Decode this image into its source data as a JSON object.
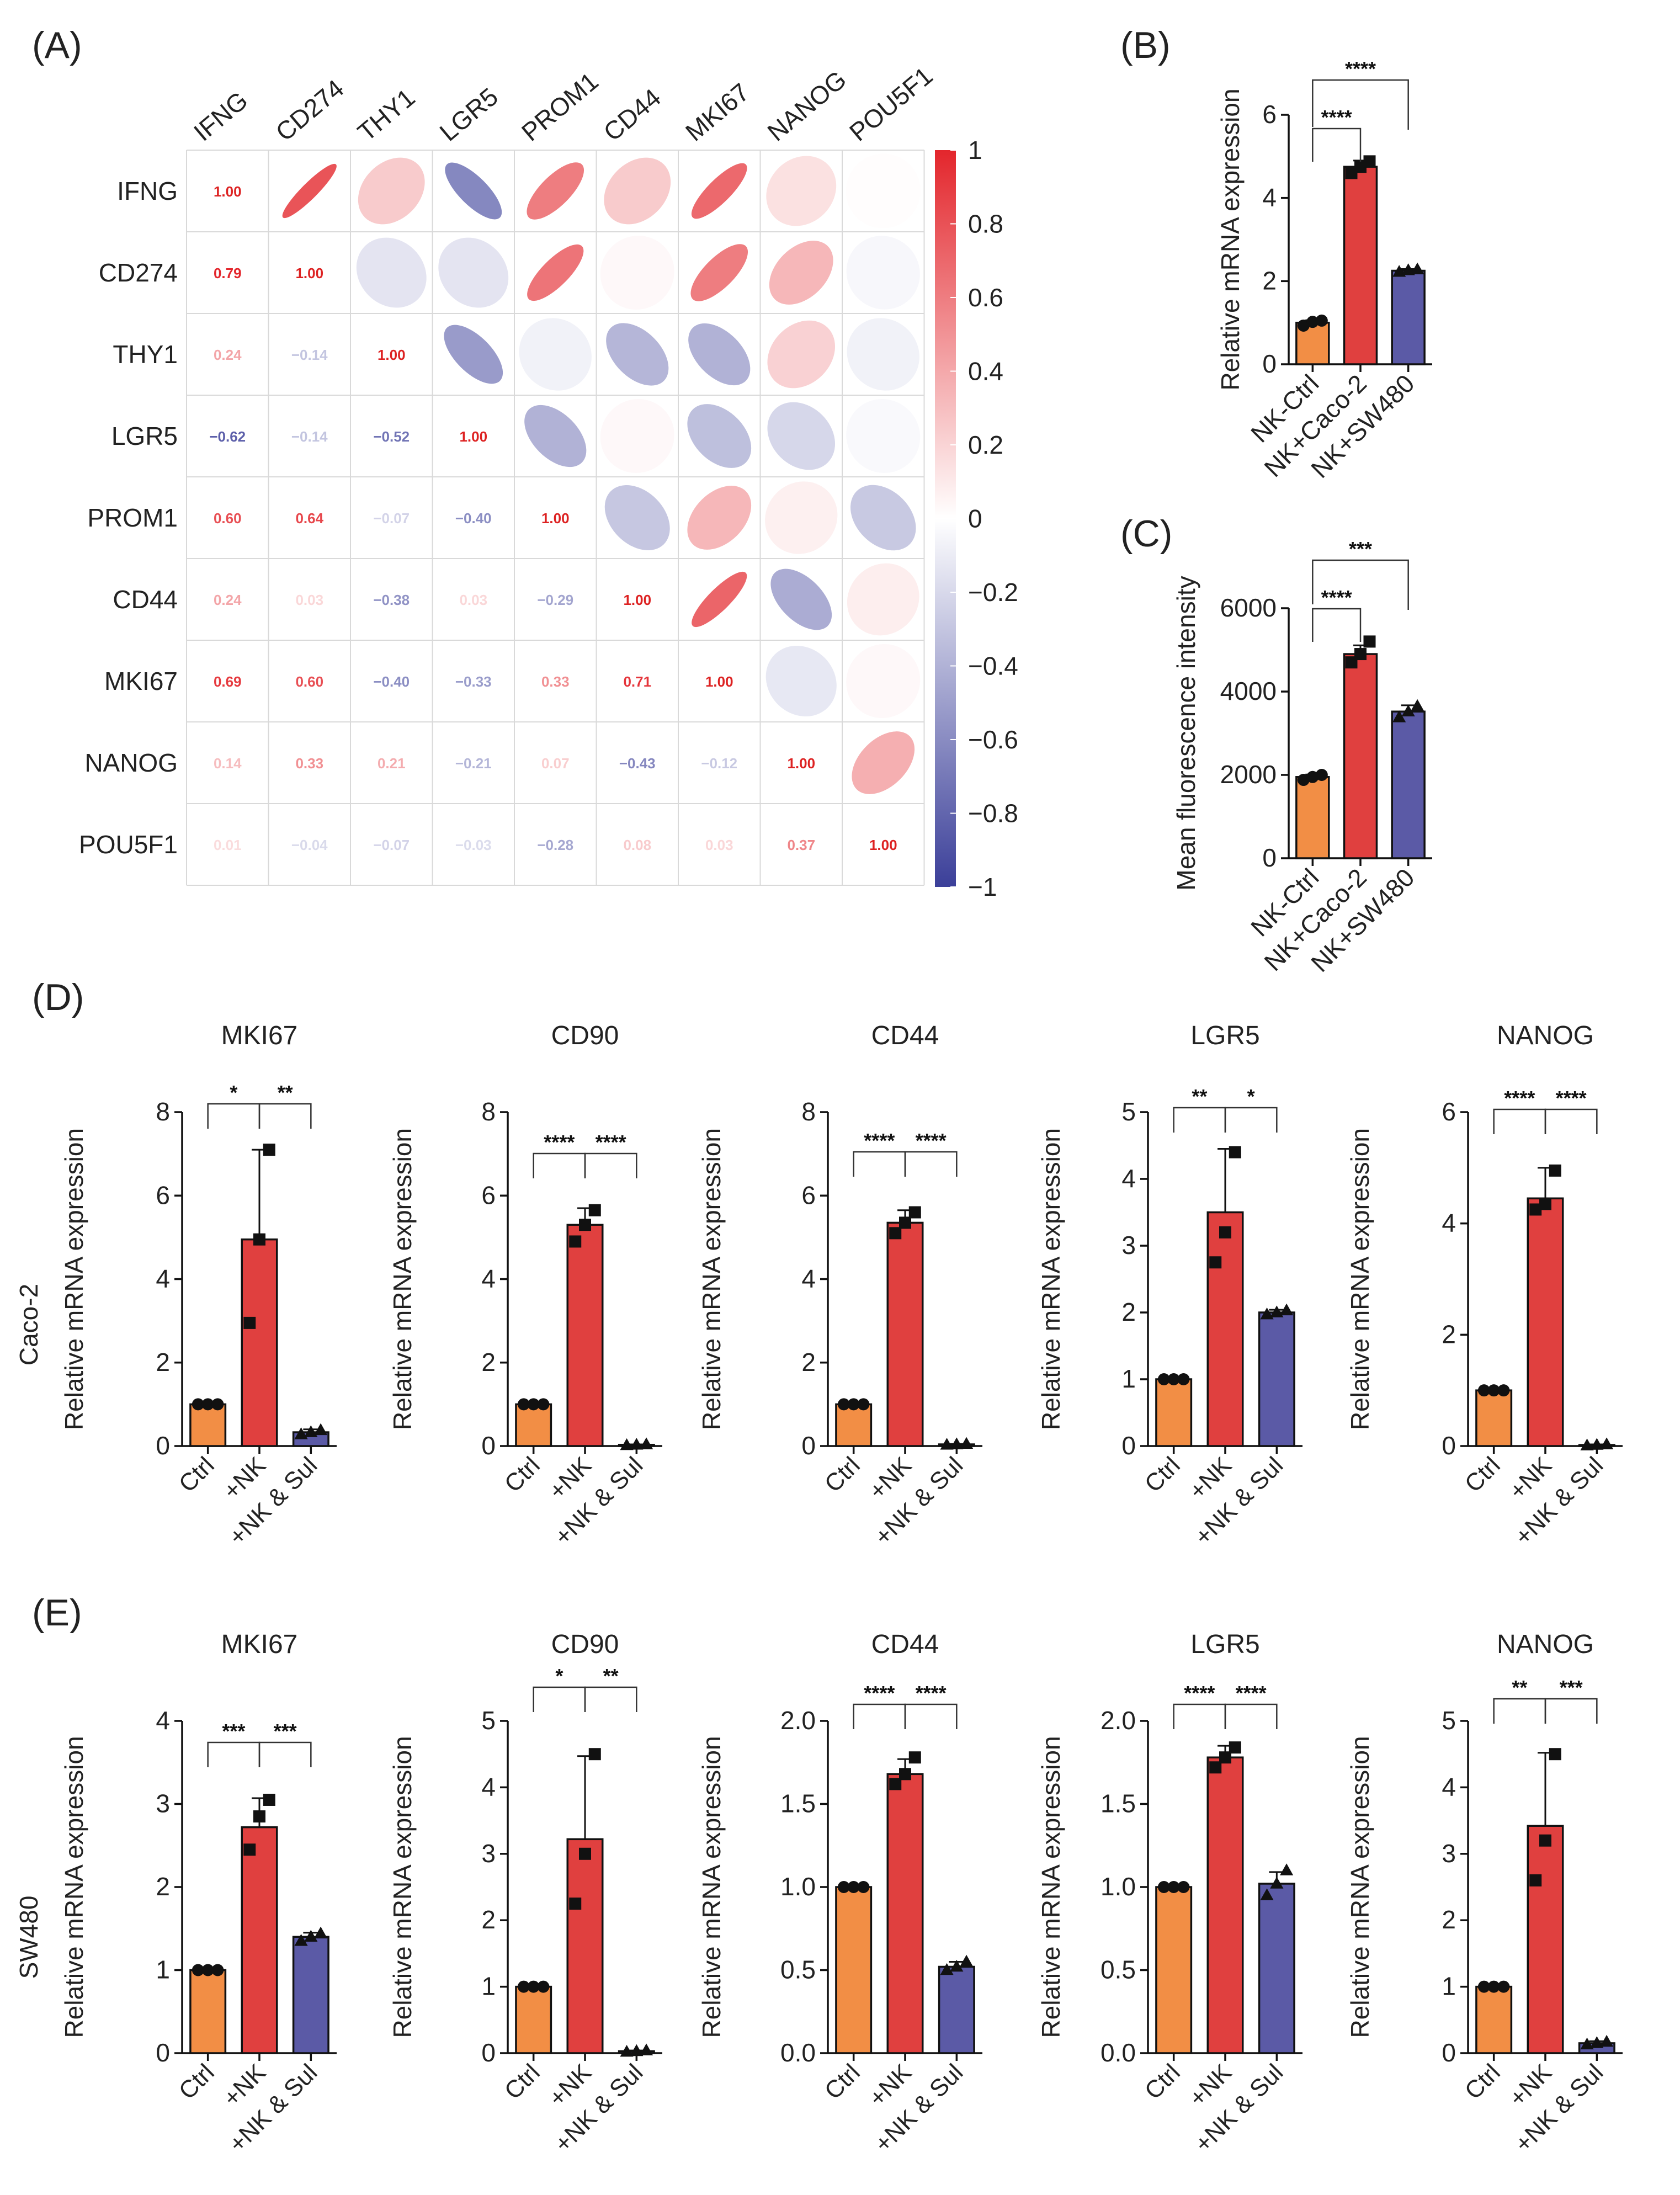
{
  "colors": {
    "orange": "#F28E45",
    "red": "#E0403F",
    "purple": "#5B5AA6",
    "neg": "#3B3F99",
    "pos": "#E3262C",
    "text": "#222222"
  },
  "panels": {
    "A": "(A)",
    "B": "(B)",
    "C": "(C)",
    "D": "(D)",
    "E": "(E)"
  },
  "row_labels": {
    "D": "Caco-2",
    "E": "SW480"
  },
  "chart_data": [
    {
      "id": "A",
      "type": "heatmap",
      "title": "",
      "genes": [
        "IFNG",
        "CD274",
        "THY1",
        "LGR5",
        "PROM1",
        "CD44",
        "MKI67",
        "NANOG",
        "POU5F1"
      ],
      "matrix": [
        [
          1.0,
          0.79,
          0.24,
          -0.62,
          0.6,
          0.24,
          0.69,
          0.14,
          0.01
        ],
        [
          0.79,
          1.0,
          -0.14,
          -0.14,
          0.64,
          0.03,
          0.6,
          0.33,
          -0.04
        ],
        [
          0.24,
          -0.14,
          1.0,
          -0.52,
          -0.07,
          -0.38,
          -0.4,
          0.21,
          -0.07
        ],
        [
          -0.62,
          -0.14,
          -0.52,
          1.0,
          -0.4,
          0.03,
          -0.33,
          -0.21,
          -0.03
        ],
        [
          0.6,
          0.64,
          -0.07,
          -0.4,
          1.0,
          -0.29,
          0.33,
          0.07,
          -0.28
        ],
        [
          0.24,
          0.03,
          -0.38,
          0.03,
          -0.29,
          1.0,
          0.71,
          -0.43,
          0.08
        ],
        [
          0.69,
          0.6,
          -0.4,
          -0.33,
          0.33,
          0.71,
          1.0,
          -0.12,
          0.03
        ],
        [
          0.14,
          0.33,
          0.21,
          -0.21,
          0.07,
          -0.43,
          -0.12,
          1.0,
          0.37
        ],
        [
          0.01,
          -0.04,
          -0.07,
          -0.03,
          -0.28,
          0.08,
          0.03,
          0.37,
          1.0
        ]
      ],
      "labels": [
        [
          "1.00",
          "",
          "",
          "",
          "",
          "",
          "",
          "",
          ""
        ],
        [
          "0.79",
          "1.00",
          "",
          "",
          "",
          "",
          "",
          "",
          ""
        ],
        [
          "0.24",
          "−0.14",
          "1.00",
          "",
          "",
          "",
          "",
          "",
          ""
        ],
        [
          "−0.62",
          "−0.14",
          "−0.52",
          "1.00",
          "",
          "",
          "",
          "",
          ""
        ],
        [
          "0.60",
          "0.64",
          "−0.07",
          "−0.40",
          "1.00",
          "",
          "",
          "",
          ""
        ],
        [
          "0.24",
          "0.03",
          "−0.38",
          "0.03",
          "−0.29",
          "1.00",
          "",
          "",
          ""
        ],
        [
          "0.69",
          "0.60",
          "−0.40",
          "−0.33",
          "0.33",
          "0.71",
          "1.00",
          "",
          ""
        ],
        [
          "0.14",
          "0.33",
          "0.21",
          "−0.21",
          "0.07",
          "−0.43",
          "−0.12",
          "1.00",
          ""
        ],
        [
          "0.01",
          "−0.04",
          "−0.07",
          "−0.03",
          "−0.28",
          "0.08",
          "0.03",
          "0.37",
          "1.00"
        ]
      ],
      "colorbar": {
        "range": [
          -1,
          1
        ],
        "ticks": [
          1,
          0.8,
          0.6,
          0.4,
          0.2,
          0,
          -0.2,
          -0.4,
          -0.6,
          -0.8,
          -1
        ],
        "tick_labels": [
          "1",
          "0.8",
          "0.6",
          "0.4",
          "0.2",
          "0",
          "−0.2",
          "−0.4",
          "−0.6",
          "−0.8",
          "−1"
        ]
      }
    },
    {
      "id": "B",
      "type": "bar",
      "title": "",
      "ylabel": "Relative mRNA expression",
      "categories": [
        "NK-Ctrl",
        "NK+Caco-2",
        "NK+SW480"
      ],
      "values": [
        1.0,
        4.75,
        2.25
      ],
      "errors": [
        0.06,
        0.15,
        0.04
      ],
      "points": [
        [
          0.93,
          1.02,
          1.05
        ],
        [
          4.6,
          4.75,
          4.88
        ],
        [
          2.22,
          2.26,
          2.28
        ]
      ],
      "markers": [
        "circle",
        "square",
        "triangle"
      ],
      "ylim": [
        0,
        6
      ],
      "yticks": [
        0,
        2,
        4,
        6
      ],
      "significance": [
        {
          "from": 0,
          "to": 1,
          "label": "****"
        },
        {
          "from": 0,
          "to": 2,
          "label": "****"
        }
      ]
    },
    {
      "id": "C",
      "type": "bar",
      "title": "",
      "ylabel": "Mean fluorescence intensity",
      "categories": [
        "NK-Ctrl",
        "NK+Caco-2",
        "NK+SW480"
      ],
      "values": [
        1950,
        4900,
        3520
      ],
      "errors": [
        60,
        210,
        150
      ],
      "points": [
        [
          1880,
          1950,
          2000
        ],
        [
          4700,
          4900,
          5200
        ],
        [
          3380,
          3520,
          3650
        ]
      ],
      "markers": [
        "circle",
        "square",
        "triangle"
      ],
      "ylim": [
        0,
        6000
      ],
      "yticks": [
        0,
        2000,
        4000,
        6000
      ],
      "significance": [
        {
          "from": 0,
          "to": 1,
          "label": "****"
        },
        {
          "from": 0,
          "to": 2,
          "label": "***"
        }
      ]
    },
    {
      "id": "D1",
      "type": "bar",
      "title": "MKI67",
      "ylabel": "Relative mRNA expression",
      "categories": [
        "Ctrl",
        "+NK",
        "+NK & Sul"
      ],
      "values": [
        1.0,
        4.95,
        0.33
      ],
      "errors": [
        0.04,
        2.15,
        0.07
      ],
      "points": [
        [
          1.0,
          1.0,
          1.0
        ],
        [
          2.95,
          4.95,
          7.1
        ],
        [
          0.28,
          0.33,
          0.38
        ]
      ],
      "markers": [
        "circle",
        "square",
        "triangle"
      ],
      "ylim": [
        0,
        8
      ],
      "yticks": [
        0,
        2,
        4,
        6,
        8
      ],
      "significance": [
        {
          "from": 0,
          "to": 1,
          "label": "*"
        },
        {
          "from": 1,
          "to": 2,
          "label": "**"
        }
      ]
    },
    {
      "id": "D2",
      "type": "bar",
      "title": "CD90",
      "ylabel": "Relative mRNA expression",
      "categories": [
        "Ctrl",
        "+NK",
        "+NK & Sul"
      ],
      "values": [
        1.0,
        5.3,
        0.03
      ],
      "errors": [
        0.04,
        0.4,
        0.01
      ],
      "points": [
        [
          1.0,
          1.0,
          1.0
        ],
        [
          4.9,
          5.3,
          5.65
        ],
        [
          0.02,
          0.03,
          0.04
        ]
      ],
      "markers": [
        "circle",
        "square",
        "triangle"
      ],
      "ylim": [
        0,
        8
      ],
      "yticks": [
        0,
        2,
        4,
        6,
        8
      ],
      "significance": [
        {
          "from": 0,
          "to": 1,
          "label": "****"
        },
        {
          "from": 1,
          "to": 2,
          "label": "****"
        }
      ]
    },
    {
      "id": "D3",
      "type": "bar",
      "title": "CD44",
      "ylabel": "Relative mRNA expression",
      "categories": [
        "Ctrl",
        "+NK",
        "+NK & Sul"
      ],
      "values": [
        1.0,
        5.35,
        0.04
      ],
      "errors": [
        0.04,
        0.3,
        0.01
      ],
      "points": [
        [
          1.0,
          1.0,
          1.0
        ],
        [
          5.1,
          5.35,
          5.6
        ],
        [
          0.03,
          0.04,
          0.05
        ]
      ],
      "markers": [
        "circle",
        "square",
        "triangle"
      ],
      "ylim": [
        0,
        8
      ],
      "yticks": [
        0,
        2,
        4,
        6,
        8
      ],
      "significance": [
        {
          "from": 0,
          "to": 1,
          "label": "****"
        },
        {
          "from": 1,
          "to": 2,
          "label": "****"
        }
      ]
    },
    {
      "id": "D4",
      "type": "bar",
      "title": "LGR5",
      "ylabel": "Relative mRNA expression",
      "categories": [
        "Ctrl",
        "+NK",
        "+NK & Sul"
      ],
      "values": [
        1.0,
        3.5,
        2.0
      ],
      "errors": [
        0.03,
        0.95,
        0.04
      ],
      "points": [
        [
          1.0,
          1.0,
          1.0
        ],
        [
          2.75,
          3.2,
          4.4
        ],
        [
          1.97,
          2.0,
          2.03
        ]
      ],
      "markers": [
        "circle",
        "square",
        "triangle"
      ],
      "ylim": [
        0,
        5
      ],
      "yticks": [
        0,
        1,
        2,
        3,
        4,
        5
      ],
      "significance": [
        {
          "from": 0,
          "to": 1,
          "label": "**"
        },
        {
          "from": 1,
          "to": 2,
          "label": "*"
        }
      ]
    },
    {
      "id": "D5",
      "type": "bar",
      "title": "NANOG",
      "ylabel": "Relative mRNA expression",
      "categories": [
        "Ctrl",
        "+NK",
        "+NK & Sul"
      ],
      "values": [
        1.0,
        4.45,
        0.02
      ],
      "errors": [
        0.03,
        0.55,
        0.01
      ],
      "points": [
        [
          1.0,
          1.0,
          1.0
        ],
        [
          4.25,
          4.35,
          4.95
        ],
        [
          0.01,
          0.02,
          0.03
        ]
      ],
      "markers": [
        "circle",
        "square",
        "triangle"
      ],
      "ylim": [
        0,
        6
      ],
      "yticks": [
        0,
        2,
        4,
        6
      ],
      "significance": [
        {
          "from": 0,
          "to": 1,
          "label": "****"
        },
        {
          "from": 1,
          "to": 2,
          "label": "****"
        }
      ]
    },
    {
      "id": "E1",
      "type": "bar",
      "title": "MKI67",
      "ylabel": "Relative mRNA expression",
      "categories": [
        "Ctrl",
        "+NK",
        "+NK & Sul"
      ],
      "values": [
        1.0,
        2.72,
        1.4
      ],
      "errors": [
        0.02,
        0.35,
        0.05
      ],
      "points": [
        [
          1.0,
          1.0,
          1.0
        ],
        [
          2.45,
          2.85,
          3.05
        ],
        [
          1.35,
          1.4,
          1.44
        ]
      ],
      "markers": [
        "circle",
        "square",
        "triangle"
      ],
      "ylim": [
        0,
        4
      ],
      "yticks": [
        0,
        1,
        2,
        3,
        4
      ],
      "significance": [
        {
          "from": 0,
          "to": 1,
          "label": "***"
        },
        {
          "from": 1,
          "to": 2,
          "label": "***"
        }
      ]
    },
    {
      "id": "E2",
      "type": "bar",
      "title": "CD90",
      "ylabel": "Relative mRNA expression",
      "categories": [
        "Ctrl",
        "+NK",
        "+NK & Sul"
      ],
      "values": [
        1.0,
        3.22,
        0.03
      ],
      "errors": [
        0.02,
        1.25,
        0.01
      ],
      "points": [
        [
          1.0,
          1.0,
          1.0
        ],
        [
          2.25,
          3.0,
          4.5
        ],
        [
          0.02,
          0.03,
          0.04
        ]
      ],
      "markers": [
        "circle",
        "square",
        "triangle"
      ],
      "ylim": [
        0,
        5
      ],
      "yticks": [
        0,
        1,
        2,
        3,
        4,
        5
      ],
      "significance": [
        {
          "from": 0,
          "to": 1,
          "label": "*"
        },
        {
          "from": 1,
          "to": 2,
          "label": "**"
        }
      ]
    },
    {
      "id": "E3",
      "type": "bar",
      "title": "CD44",
      "ylabel": "Relative mRNA expression",
      "categories": [
        "Ctrl",
        "+NK",
        "+NK & Sul"
      ],
      "values": [
        1.0,
        1.68,
        0.52
      ],
      "errors": [
        0.01,
        0.09,
        0.03
      ],
      "points": [
        [
          1.0,
          1.0,
          1.0
        ],
        [
          1.62,
          1.68,
          1.78
        ],
        [
          0.5,
          0.52,
          0.55
        ]
      ],
      "markers": [
        "circle",
        "square",
        "triangle"
      ],
      "ylim": [
        0,
        2.0
      ],
      "yticks": [
        0,
        0.5,
        1.0,
        1.5,
        2.0
      ],
      "significance": [
        {
          "from": 0,
          "to": 1,
          "label": "****"
        },
        {
          "from": 1,
          "to": 2,
          "label": "****"
        }
      ]
    },
    {
      "id": "E4",
      "type": "bar",
      "title": "LGR5",
      "ylabel": "Relative mRNA expression",
      "categories": [
        "Ctrl",
        "+NK",
        "+NK & Sul"
      ],
      "values": [
        1.0,
        1.78,
        1.02
      ],
      "errors": [
        0.01,
        0.07,
        0.07
      ],
      "points": [
        [
          1.0,
          1.0,
          1.0
        ],
        [
          1.72,
          1.78,
          1.84
        ],
        [
          0.95,
          1.02,
          1.1
        ]
      ],
      "markers": [
        "circle",
        "square",
        "triangle"
      ],
      "ylim": [
        0,
        2.0
      ],
      "yticks": [
        0,
        0.5,
        1.0,
        1.5,
        2.0
      ],
      "significance": [
        {
          "from": 0,
          "to": 1,
          "label": "****"
        },
        {
          "from": 1,
          "to": 2,
          "label": "****"
        }
      ]
    },
    {
      "id": "E5",
      "type": "bar",
      "title": "NANOG",
      "ylabel": "Relative mRNA expression",
      "categories": [
        "Ctrl",
        "+NK",
        "+NK & Sul"
      ],
      "values": [
        1.0,
        3.42,
        0.15
      ],
      "errors": [
        0.02,
        1.1,
        0.03
      ],
      "points": [
        [
          1.0,
          1.0,
          1.0
        ],
        [
          2.6,
          3.2,
          4.5
        ],
        [
          0.13,
          0.15,
          0.17
        ]
      ],
      "markers": [
        "circle",
        "square",
        "triangle"
      ],
      "ylim": [
        0,
        5
      ],
      "yticks": [
        0,
        1,
        2,
        3,
        4,
        5
      ],
      "significance": [
        {
          "from": 0,
          "to": 1,
          "label": "**"
        },
        {
          "from": 1,
          "to": 2,
          "label": "***"
        }
      ]
    }
  ]
}
